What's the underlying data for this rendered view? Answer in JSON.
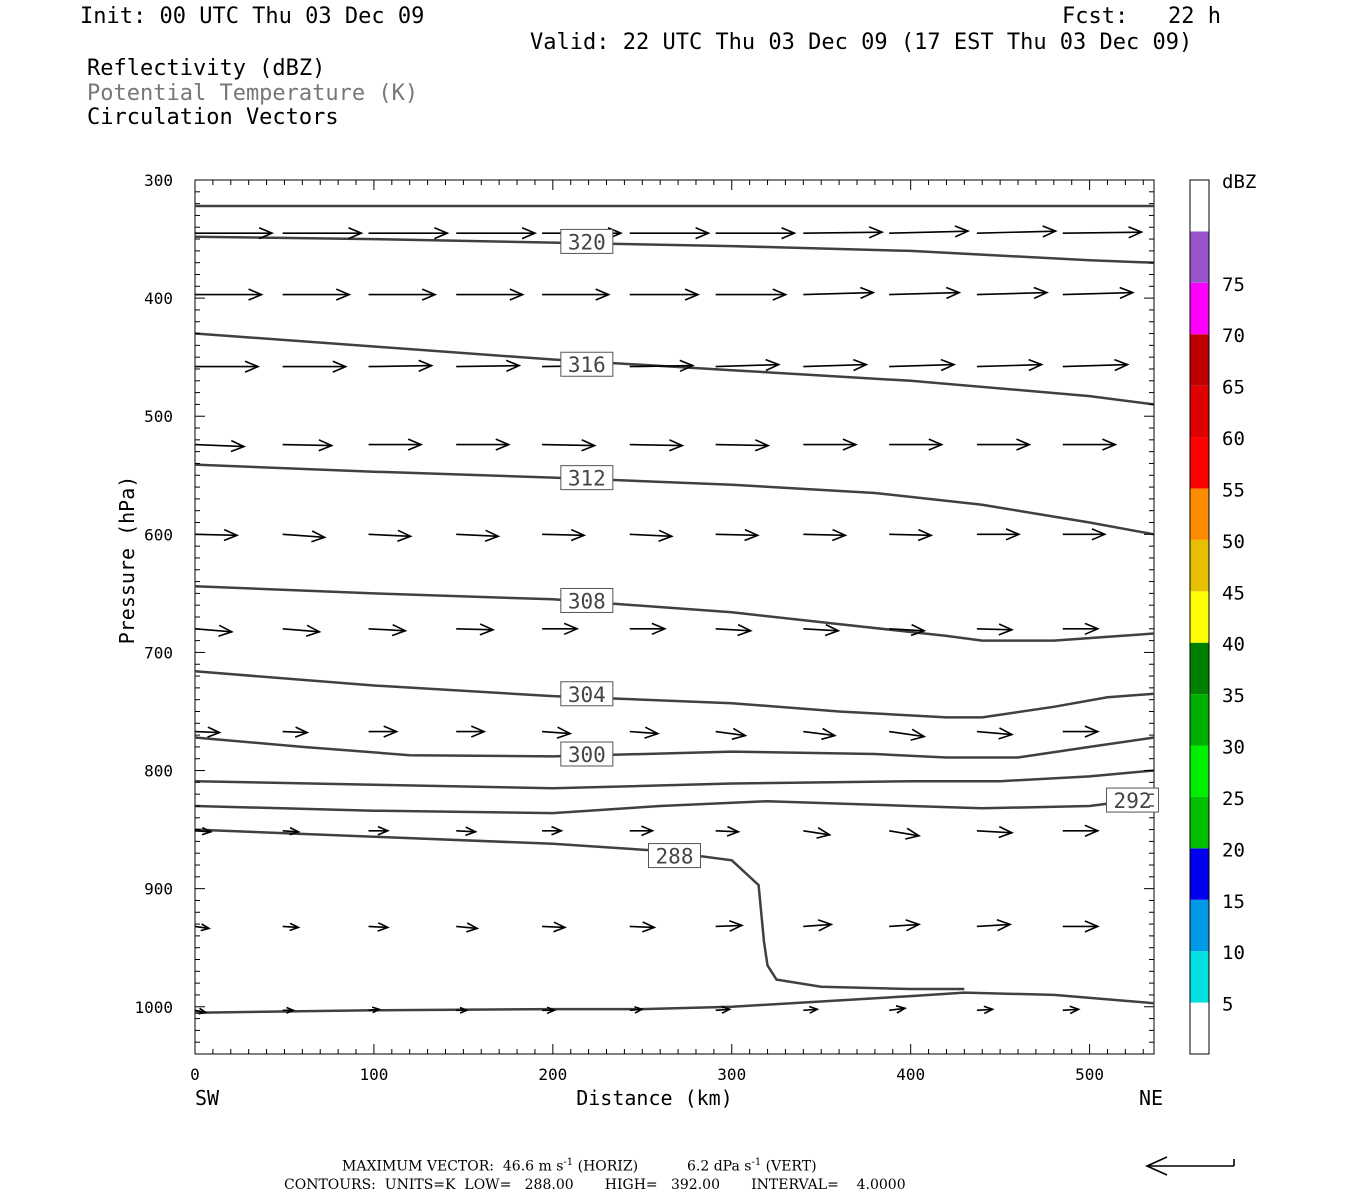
{
  "header": {
    "init": "Init: 00 UTC Thu 03 Dec 09",
    "fcst": "Fcst:   22 h",
    "valid": "Valid: 22 UTC Thu 03 Dec 09 (17 EST Thu 03 Dec 09)",
    "field1": "Reflectivity (dBZ)",
    "field2": "Potential Temperature (K)",
    "field3": "Circulation Vectors"
  },
  "footer": {
    "max_vector": "MAXIMUM VECTOR:  46.6 m s",
    "max_vector_exp": "-1",
    "horiz": " (HORIZ)",
    "vert_val": "6.2 dPa s",
    "vert_exp": "-1",
    "vert": " (VERT)",
    "contours": "CONTOURS:  UNITS=K  LOW=   288.00       HIGH=   392.00       INTERVAL=    4.0000"
  },
  "chart_data": {
    "type": "line",
    "title": "",
    "xlabel": "Distance (km)",
    "ylabel": "Pressure (hPa)",
    "xlim": [
      0,
      536
    ],
    "ylim": [
      1040,
      300
    ],
    "xticks": [
      0,
      100,
      200,
      300,
      400,
      500
    ],
    "yticks": [
      300,
      400,
      500,
      600,
      700,
      800,
      900,
      1000
    ],
    "x_end_labels": {
      "left": "SW",
      "right": "NE"
    },
    "contour_color": "#404040",
    "contours": [
      {
        "level": null,
        "points": [
          [
            0,
            322
          ],
          [
            536,
            322
          ]
        ]
      },
      {
        "level": "320",
        "label_at": [
          219,
          352
        ],
        "points": [
          [
            0,
            348
          ],
          [
            100,
            350
          ],
          [
            200,
            353
          ],
          [
            300,
            356
          ],
          [
            400,
            360
          ],
          [
            500,
            368
          ],
          [
            536,
            370
          ]
        ]
      },
      {
        "level": "316",
        "label_at": [
          219,
          456
        ],
        "points": [
          [
            0,
            430
          ],
          [
            100,
            441
          ],
          [
            200,
            452
          ],
          [
            300,
            461
          ],
          [
            400,
            470
          ],
          [
            500,
            483
          ],
          [
            536,
            490
          ]
        ]
      },
      {
        "level": "312",
        "label_at": [
          219,
          552
        ],
        "points": [
          [
            0,
            541
          ],
          [
            100,
            547
          ],
          [
            200,
            552
          ],
          [
            300,
            558
          ],
          [
            380,
            565
          ],
          [
            440,
            575
          ],
          [
            480,
            585
          ],
          [
            500,
            590
          ],
          [
            536,
            600
          ]
        ]
      },
      {
        "level": "308",
        "label_at": [
          219,
          656
        ],
        "points": [
          [
            0,
            644
          ],
          [
            100,
            650
          ],
          [
            200,
            655
          ],
          [
            300,
            666
          ],
          [
            360,
            676
          ],
          [
            420,
            686
          ],
          [
            440,
            690
          ],
          [
            480,
            690
          ],
          [
            536,
            684
          ]
        ]
      },
      {
        "level": "304",
        "label_at": [
          219,
          735
        ],
        "points": [
          [
            0,
            716
          ],
          [
            100,
            728
          ],
          [
            200,
            737
          ],
          [
            300,
            743
          ],
          [
            360,
            750
          ],
          [
            420,
            755
          ],
          [
            440,
            755
          ],
          [
            480,
            746
          ],
          [
            510,
            738
          ],
          [
            536,
            735
          ]
        ]
      },
      {
        "level": "300",
        "label_at": [
          219,
          786
        ],
        "points": [
          [
            0,
            772
          ],
          [
            60,
            780
          ],
          [
            120,
            787
          ],
          [
            200,
            788
          ],
          [
            300,
            784
          ],
          [
            380,
            786
          ],
          [
            420,
            789
          ],
          [
            460,
            789
          ],
          [
            500,
            780
          ],
          [
            536,
            772
          ]
        ]
      },
      {
        "level": null,
        "points": [
          [
            0,
            809
          ],
          [
            100,
            812
          ],
          [
            200,
            815
          ],
          [
            300,
            811
          ],
          [
            400,
            809
          ],
          [
            450,
            809
          ],
          [
            500,
            805
          ],
          [
            536,
            800
          ]
        ]
      },
      {
        "level": "292",
        "label_at": [
          524,
          825
        ],
        "points": [
          [
            0,
            830
          ],
          [
            100,
            834
          ],
          [
            200,
            836
          ],
          [
            260,
            830
          ],
          [
            320,
            826
          ],
          [
            400,
            830
          ],
          [
            440,
            832
          ],
          [
            500,
            830
          ],
          [
            536,
            823
          ]
        ]
      },
      {
        "level": "288",
        "label_at": [
          268,
          872
        ],
        "points": [
          [
            0,
            850
          ],
          [
            100,
            856
          ],
          [
            200,
            862
          ],
          [
            260,
            868
          ],
          [
            300,
            876
          ],
          [
            315,
            897
          ],
          [
            318,
            945
          ],
          [
            320,
            965
          ],
          [
            325,
            977
          ],
          [
            350,
            983
          ],
          [
            400,
            985
          ],
          [
            430,
            985
          ]
        ]
      },
      {
        "level": null,
        "points": [
          [
            0,
            1005
          ],
          [
            100,
            1003
          ],
          [
            200,
            1002
          ],
          [
            250,
            1002
          ],
          [
            300,
            1000
          ],
          [
            400,
            991
          ],
          [
            430,
            988
          ],
          [
            480,
            990
          ],
          [
            536,
            997
          ]
        ]
      }
    ],
    "vector_rows": [
      {
        "p": 345,
        "x": [
          0,
          49,
          97,
          146,
          194,
          243,
          291,
          340,
          388,
          437,
          485
        ],
        "u": [
          44,
          45,
          45,
          45,
          45,
          45,
          45,
          45,
          45,
          45,
          45
        ],
        "dp": [
          0,
          0,
          0,
          0,
          0,
          0,
          0,
          -1,
          -2,
          -2,
          -1
        ]
      },
      {
        "p": 397,
        "x": [
          0,
          49,
          97,
          146,
          194,
          243,
          291,
          340,
          388,
          437,
          485
        ],
        "u": [
          38,
          38,
          38,
          38,
          38,
          39,
          40,
          40,
          40,
          40,
          40
        ],
        "dp": [
          0,
          0,
          0,
          0,
          0,
          0,
          0,
          -2,
          -2,
          -2,
          -2
        ]
      },
      {
        "p": 458,
        "x": [
          0,
          49,
          97,
          146,
          194,
          243,
          291,
          340,
          388,
          437,
          485
        ],
        "u": [
          36,
          36,
          36,
          36,
          36,
          36,
          36,
          36,
          37,
          37,
          37
        ],
        "dp": [
          0,
          0,
          -1,
          -1,
          -1,
          -1,
          -2,
          -2,
          -2,
          -2,
          -2
        ]
      },
      {
        "p": 524,
        "x": [
          0,
          49,
          97,
          146,
          194,
          243,
          291,
          340,
          388,
          437,
          485
        ],
        "u": [
          28,
          28,
          30,
          30,
          30,
          30,
          30,
          30,
          30,
          30,
          30
        ],
        "dp": [
          2,
          1,
          0,
          0,
          1,
          1,
          1,
          0,
          0,
          0,
          0
        ]
      },
      {
        "p": 600,
        "x": [
          0,
          49,
          97,
          146,
          194,
          243,
          291,
          340,
          388,
          437,
          485
        ],
        "u": [
          24,
          24,
          24,
          24,
          24,
          24,
          24,
          24,
          24,
          24,
          24
        ],
        "dp": [
          1,
          3,
          2,
          2,
          1,
          2,
          1,
          1,
          1,
          0,
          0
        ]
      },
      {
        "p": 680,
        "x": [
          0,
          49,
          97,
          146,
          194,
          243,
          291,
          340,
          388,
          437,
          485
        ],
        "u": [
          21,
          21,
          21,
          21,
          20,
          20,
          20,
          20,
          20,
          20,
          20
        ],
        "dp": [
          3,
          3,
          2,
          1,
          0,
          0,
          2,
          2,
          2,
          1,
          0
        ]
      },
      {
        "p": 767,
        "x": [
          0,
          49,
          97,
          146,
          194,
          243,
          291,
          340,
          388,
          437,
          485
        ],
        "u": [
          14,
          14,
          16,
          16,
          16,
          16,
          17,
          18,
          20,
          20,
          20
        ],
        "dp": [
          1,
          1,
          0,
          0,
          2,
          2,
          4,
          4,
          5,
          3,
          0
        ]
      },
      {
        "p": 851,
        "x": [
          0,
          49,
          97,
          146,
          194,
          243,
          291,
          340,
          388,
          437,
          485
        ],
        "u": [
          9,
          9,
          11,
          11,
          11,
          13,
          13,
          15,
          17,
          20,
          20
        ],
        "dp": [
          1,
          1,
          0,
          1,
          0,
          0,
          1,
          4,
          5,
          2,
          0
        ]
      },
      {
        "p": 932,
        "x": [
          0,
          49,
          97,
          146,
          194,
          243,
          291,
          340,
          388,
          437,
          485
        ],
        "u": [
          8,
          9,
          11,
          12,
          13,
          14,
          15,
          16,
          17,
          19,
          20
        ],
        "dp": [
          2,
          1,
          1,
          2,
          1,
          1,
          -1,
          -2,
          -2,
          -2,
          0
        ]
      },
      {
        "p": 1003,
        "x": [
          0,
          49,
          97,
          146,
          194,
          243,
          291,
          340,
          388,
          437,
          485
        ],
        "u": [
          6,
          6,
          6,
          6,
          7,
          7,
          8,
          8,
          9,
          9,
          9
        ],
        "dp": [
          2,
          0,
          -1,
          0,
          0,
          -1,
          -1,
          -1,
          -2,
          -1,
          -1
        ]
      }
    ],
    "colorbar": {
      "title": "dBZ",
      "labels": [
        "5",
        "10",
        "15",
        "20",
        "25",
        "30",
        "35",
        "40",
        "45",
        "50",
        "55",
        "60",
        "65",
        "70",
        "75"
      ],
      "colors": [
        "#ffffff",
        "#00e0e0",
        "#0099e6",
        "#0000ee",
        "#00c000",
        "#00ee00",
        "#00b000",
        "#008000",
        "#ffff00",
        "#e6c000",
        "#ff8c00",
        "#ff0000",
        "#e00000",
        "#c00000",
        "#ff00ff",
        "#9955cc",
        "#ffffff"
      ]
    },
    "reference_vector": "arrow"
  }
}
